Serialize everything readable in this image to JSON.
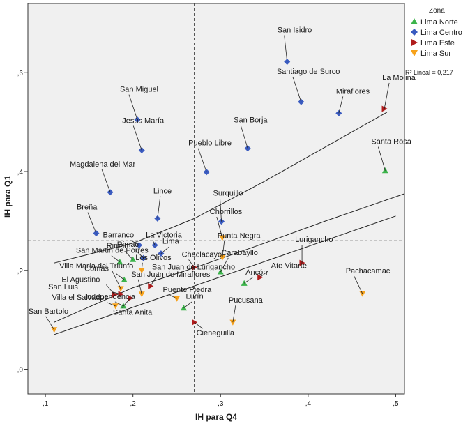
{
  "chart_data": {
    "type": "scatter",
    "xlabel": "IH para Q4",
    "ylabel": "IH para Q1",
    "xlim": [
      0.08,
      0.51
    ],
    "ylim": [
      -0.05,
      0.74
    ],
    "x_ticks": [
      0.1,
      0.2,
      0.3,
      0.4,
      0.5
    ],
    "x_tick_labels": [
      ",1",
      ",2",
      ",3",
      ",4",
      ",5"
    ],
    "y_ticks": [
      0.0,
      0.2,
      0.4,
      0.6
    ],
    "y_tick_labels": [
      ",0",
      ",2",
      ",4",
      ",6"
    ],
    "grid": false,
    "reference_lines": {
      "x": 0.27,
      "y": 0.26
    },
    "legend": {
      "title": "Zona",
      "placement": "top-right-outside",
      "entries": [
        {
          "name": "Lima Norte",
          "marker": "triangle-up",
          "color": "#3cb44b"
        },
        {
          "name": "Lima Centro",
          "marker": "diamond",
          "color": "#3a5bc0"
        },
        {
          "name": "Lima Este",
          "marker": "triangle-right",
          "color": "#b01c1c"
        },
        {
          "name": "Lima Sur",
          "marker": "triangle-down",
          "color": "#f7a21b"
        }
      ]
    },
    "fit_annotation": "R² Lineal = 0,217",
    "fit_line": {
      "x": [
        0.11,
        0.5
      ],
      "y": [
        0.07,
        0.31
      ]
    },
    "confidence_band": {
      "upper": [
        [
          0.11,
          0.215
        ],
        [
          0.2,
          0.255
        ],
        [
          0.27,
          0.305
        ],
        [
          0.35,
          0.38
        ],
        [
          0.42,
          0.45
        ],
        [
          0.49,
          0.52
        ]
      ],
      "lower": [
        [
          0.11,
          0.095
        ],
        [
          0.2,
          0.165
        ],
        [
          0.27,
          0.205
        ],
        [
          0.35,
          0.255
        ],
        [
          0.42,
          0.3
        ],
        [
          0.51,
          0.355
        ]
      ]
    },
    "series": [
      {
        "name": "Lima Norte",
        "points": [
          {
            "label": "Santa Rosa",
            "x": 0.488,
            "y": 0.402
          },
          {
            "label": "San Martin de Porres",
            "x": 0.185,
            "y": 0.217
          },
          {
            "label": "Comas",
            "x": 0.19,
            "y": 0.181
          },
          {
            "label": "Rimac",
            "x": 0.2,
            "y": 0.222
          },
          {
            "label": "Carabayllo",
            "x": 0.3,
            "y": 0.197
          },
          {
            "label": "Ancón",
            "x": 0.327,
            "y": 0.174
          },
          {
            "label": "Independencia",
            "x": 0.189,
            "y": 0.128
          },
          {
            "label": "Lurín",
            "x": 0.258,
            "y": 0.124
          }
        ]
      },
      {
        "name": "Lima Centro",
        "points": [
          {
            "label": "San Isidro",
            "x": 0.376,
            "y": 0.622
          },
          {
            "label": "Santiago de Surco",
            "x": 0.392,
            "y": 0.541
          },
          {
            "label": "Miraflores",
            "x": 0.435,
            "y": 0.518
          },
          {
            "label": "San Miguel",
            "x": 0.205,
            "y": 0.505
          },
          {
            "label": "San Borja",
            "x": 0.331,
            "y": 0.447
          },
          {
            "label": "Jesús María",
            "x": 0.21,
            "y": 0.443
          },
          {
            "label": "Pueblo Libre",
            "x": 0.284,
            "y": 0.399
          },
          {
            "label": "Magdalena del Mar",
            "x": 0.174,
            "y": 0.358
          },
          {
            "label": "Lince",
            "x": 0.228,
            "y": 0.305
          },
          {
            "label": "Surquillo",
            "x": 0.301,
            "y": 0.299
          },
          {
            "label": "Breña",
            "x": 0.158,
            "y": 0.275
          },
          {
            "label": "Barranco",
            "x": 0.207,
            "y": 0.251
          },
          {
            "label": "La Victoria",
            "x": 0.225,
            "y": 0.251
          },
          {
            "label": "Lima",
            "x": 0.232,
            "y": 0.234
          },
          {
            "label": "Rimac",
            "x": 0.212,
            "y": 0.225
          }
        ]
      },
      {
        "name": "Lima Este",
        "points": [
          {
            "label": "La Molina",
            "x": 0.487,
            "y": 0.527
          },
          {
            "label": "Lurigancho",
            "x": 0.393,
            "y": 0.215
          },
          {
            "label": "Ate Vitarte",
            "x": 0.345,
            "y": 0.186
          },
          {
            "label": "Chaclacayo",
            "x": 0.27,
            "y": 0.206
          },
          {
            "label": "San Juan de Lurigancho",
            "x": 0.22,
            "y": 0.168
          },
          {
            "label": "San Luis",
            "x": 0.186,
            "y": 0.152
          },
          {
            "label": "El Agustino",
            "x": 0.179,
            "y": 0.151
          },
          {
            "label": "Santa Anita",
            "x": 0.197,
            "y": 0.144
          },
          {
            "label": "Cieneguilla",
            "x": 0.27,
            "y": 0.095
          }
        ]
      },
      {
        "name": "Lima Sur",
        "points": [
          {
            "label": "Chorrillos",
            "x": 0.302,
            "y": 0.266
          },
          {
            "label": "Punta Negra",
            "x": 0.302,
            "y": 0.226
          },
          {
            "label": "Los Olivos",
            "x": 0.21,
            "y": 0.2
          },
          {
            "label": "San Juan de Miraflores",
            "x": 0.21,
            "y": 0.152
          },
          {
            "label": "Villa María del Triunfo",
            "x": 0.186,
            "y": 0.163
          },
          {
            "label": "Villa el Salvador",
            "x": 0.18,
            "y": 0.128
          },
          {
            "label": "Puente Piedra",
            "x": 0.25,
            "y": 0.143
          },
          {
            "label": "Pucusana",
            "x": 0.314,
            "y": 0.095
          },
          {
            "label": "Pachacamac",
            "x": 0.462,
            "y": 0.153
          },
          {
            "label": "San Bartolo",
            "x": 0.11,
            "y": 0.08
          }
        ]
      }
    ]
  },
  "labels_layout": {
    "San Isidro": [
      -14,
      -42
    ],
    "Santiago de Surco": [
      -35,
      -40
    ],
    "Miraflores": [
      -4,
      -28
    ],
    "La Molina": [
      -3,
      -41
    ],
    "San Miguel": [
      -25,
      -40
    ],
    "Jesús María": [
      -28,
      -39
    ],
    "San Borja": [
      -20,
      -37
    ],
    "Pueblo Libre": [
      -26,
      -38
    ],
    "Santa Rosa": [
      -20,
      -38
    ],
    "Magdalena del Mar": [
      -58,
      -37
    ],
    "Lince": [
      -6,
      -36
    ],
    "Surquillo": [
      -12,
      -37
    ],
    "Breña": [
      -28,
      -34
    ],
    "Chorrillos": [
      -18,
      -34
    ],
    "Barranco": [
      -52,
      -11
    ],
    "La Victoria": [
      -13,
      -11
    ],
    "Lima": [
      2,
      -14
    ],
    "Rimac": [
      -38,
      -16
    ],
    "Punta Negra": [
      -7,
      -28
    ],
    "Chaclacayo": [
      -18,
      -15
    ],
    "Lurigancho": [
      -10,
      -30
    ],
    "San Martin de Porres": [
      -63,
      -13
    ],
    "Los Olivos": [
      -9,
      -15
    ],
    "Carabayllo": [
      1,
      -24
    ],
    "Comas": [
      -57,
      -13
    ],
    "El Agustino": [
      -76,
      -18
    ],
    "San Juan de Miraflores": [
      -15,
      -25
    ],
    "Ate Vitarte": [
      16,
      -13
    ],
    "Ancón": [
      2,
      -12
    ],
    "Pachacamac": [
      -24,
      -29
    ],
    "Villa María del Triunfo": [
      -88,
      -29
    ],
    "San Luis": [
      -104,
      -7
    ],
    "San Juan de Lurigancho": [
      2,
      -24
    ],
    "Villa el Salvador": [
      -91,
      -9
    ],
    "Lurín": [
      3,
      -13
    ],
    "Independencia": [
      -55,
      -10
    ],
    "Puente Piedra": [
      -20,
      -9
    ],
    "Pucusana": [
      -6,
      -28
    ],
    "Santa Anita": [
      -25,
      24
    ],
    "Cieneguilla": [
      3,
      19
    ],
    "San Bartolo": [
      -37,
      -23
    ]
  }
}
